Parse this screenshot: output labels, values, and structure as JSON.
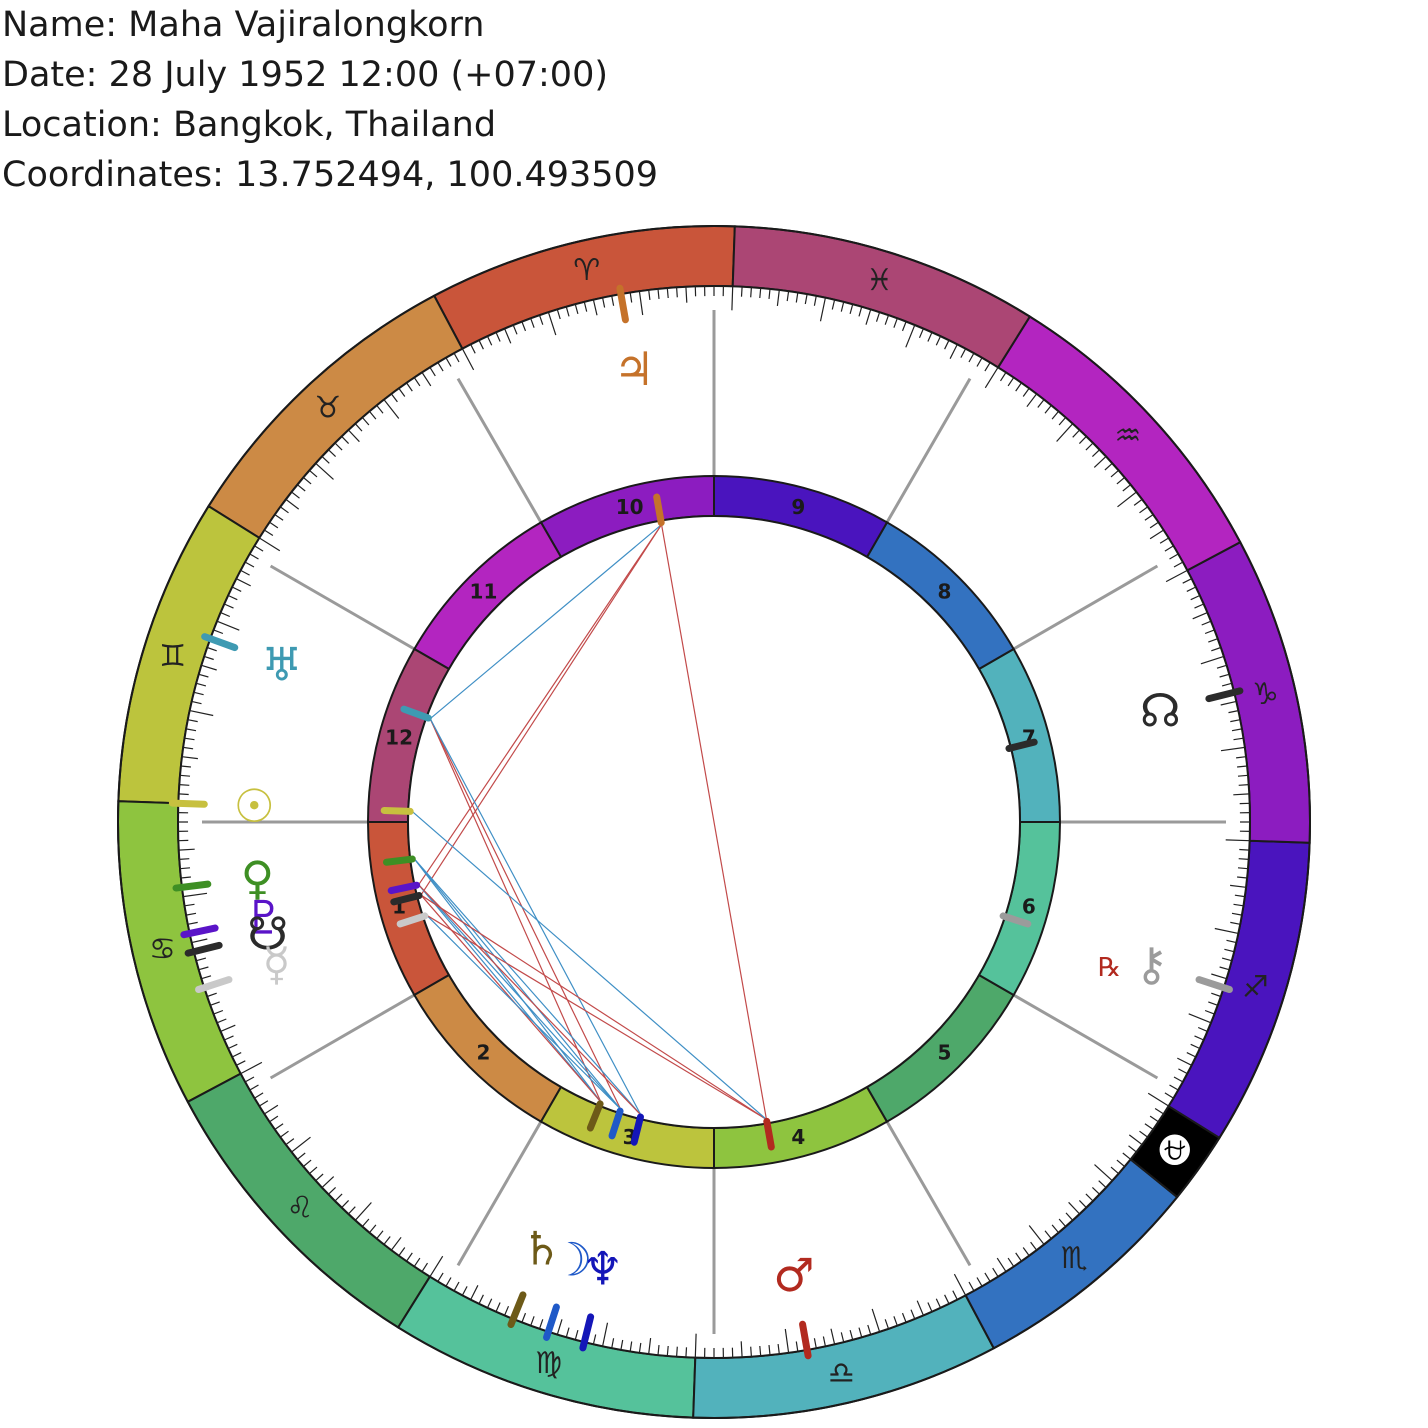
{
  "header": {
    "name_line": "Name: Maha Vajiralongkorn",
    "date_line": "Date: 28 July 1952 12:00 (+07:00)",
    "location_line": "Location: Bangkok, Thailand",
    "coords_line": "Coordinates: 13.752494, 100.493509"
  },
  "chart": {
    "ascendant_longitude": 92,
    "signs": [
      {
        "name": "aries",
        "glyph": "♈",
        "start": 0,
        "color": "#c9553a",
        "text_color": "#222222"
      },
      {
        "name": "taurus",
        "glyph": "♉",
        "start": 30,
        "color": "#cc8a45",
        "text_color": "#222222"
      },
      {
        "name": "gemini",
        "glyph": "♊",
        "start": 60,
        "color": "#bcc43d",
        "text_color": "#222222"
      },
      {
        "name": "cancer",
        "glyph": "♋",
        "start": 90,
        "color": "#8ec43f",
        "text_color": "#222222"
      },
      {
        "name": "leo",
        "glyph": "♌",
        "start": 120,
        "color": "#4ea86a",
        "text_color": "#222222"
      },
      {
        "name": "virgo",
        "glyph": "♍",
        "start": 150,
        "color": "#55c29b",
        "text_color": "#222222"
      },
      {
        "name": "libra",
        "glyph": "♎",
        "start": 180,
        "color": "#52b2bc",
        "text_color": "#222222"
      },
      {
        "name": "scorpio",
        "glyph": "♏",
        "start": 210,
        "color": "#3372c0",
        "text_color": "#222222"
      },
      {
        "name": "ophiuchus",
        "glyph": "⛎",
        "start": 233,
        "color": "#000000",
        "text_color": "#ffffff"
      },
      {
        "name": "sagittarius",
        "glyph": "♐",
        "start": 240,
        "color": "#4a14be",
        "text_color": "#222222"
      },
      {
        "name": "capricorn",
        "glyph": "♑",
        "start": 270,
        "color": "#8c1cc0",
        "text_color": "#222222"
      },
      {
        "name": "aquarius",
        "glyph": "♒",
        "start": 300,
        "color": "#b325c0",
        "text_color": "#222222"
      },
      {
        "name": "pisces",
        "glyph": "♓",
        "start": 330,
        "color": "#ab4674",
        "text_color": "#222222"
      }
    ],
    "houses": [
      {
        "number": "1",
        "start": 92,
        "color": "#c9553a"
      },
      {
        "number": "2",
        "start": 122,
        "color": "#cc8a45"
      },
      {
        "number": "3",
        "start": 152,
        "color": "#bcc43d"
      },
      {
        "number": "4",
        "start": 182,
        "color": "#8ec43f"
      },
      {
        "number": "5",
        "start": 212,
        "color": "#4ea86a"
      },
      {
        "number": "6",
        "start": 242,
        "color": "#55c29b"
      },
      {
        "number": "7",
        "start": 272,
        "color": "#52b2bc"
      },
      {
        "number": "8",
        "start": 302,
        "color": "#3372c0"
      },
      {
        "number": "9",
        "start": 332,
        "color": "#4a14be"
      },
      {
        "number": "10",
        "start": 2,
        "color": "#8c1cc0"
      },
      {
        "number": "11",
        "start": 32,
        "color": "#b325c0"
      },
      {
        "number": "12",
        "start": 62,
        "color": "#ab4674"
      }
    ],
    "planets": [
      {
        "name": "jupiter",
        "glyph": "♃",
        "longitude": 12,
        "color": "#c5722a"
      },
      {
        "name": "uranus",
        "glyph": "♅",
        "longitude": 72,
        "color": "#3e9ab2"
      },
      {
        "name": "sun",
        "glyph": "☉",
        "longitude": 90,
        "color": "#c7c03f"
      },
      {
        "name": "venus",
        "glyph": "♀",
        "longitude": 99,
        "color": "#3e8f24"
      },
      {
        "name": "pluto",
        "glyph": "♇",
        "longitude": 104,
        "color": "#5a14c8"
      },
      {
        "name": "south-node",
        "glyph": "☋",
        "longitude": 106,
        "color": "#2b2b2b"
      },
      {
        "name": "mercury",
        "glyph": "☿",
        "longitude": 110,
        "color": "#c9c9c9"
      },
      {
        "name": "saturn",
        "glyph": "♄",
        "longitude": 160,
        "color": "#6d5a18"
      },
      {
        "name": "moon",
        "glyph": "☽",
        "longitude": 164,
        "color": "#1f59c8"
      },
      {
        "name": "neptune",
        "glyph": "♆",
        "longitude": 168,
        "color": "#1416b8"
      },
      {
        "name": "mars",
        "glyph": "♂",
        "longitude": 192,
        "color": "#b22a1f"
      },
      {
        "name": "chiron",
        "glyph": "⚷",
        "longitude": 254,
        "color": "#9b9b9b"
      },
      {
        "name": "north-node",
        "glyph": "☊",
        "longitude": 286,
        "color": "#2b2b2b"
      }
    ],
    "retrograde_marker": {
      "glyph": "℞",
      "planet": "chiron",
      "color": "#b22a1f"
    },
    "aspects": [
      {
        "from": "jupiter",
        "to": "uranus",
        "kind": "trine"
      },
      {
        "from": "jupiter",
        "to": "pluto",
        "kind": "square"
      },
      {
        "from": "jupiter",
        "to": "south-node",
        "kind": "square"
      },
      {
        "from": "jupiter",
        "to": "mars",
        "kind": "square"
      },
      {
        "from": "uranus",
        "to": "saturn",
        "kind": "square"
      },
      {
        "from": "uranus",
        "to": "moon",
        "kind": "square"
      },
      {
        "from": "uranus",
        "to": "neptune",
        "kind": "trine"
      },
      {
        "from": "venus",
        "to": "saturn",
        "kind": "trine"
      },
      {
        "from": "venus",
        "to": "moon",
        "kind": "trine"
      },
      {
        "from": "venus",
        "to": "neptune",
        "kind": "trine"
      },
      {
        "from": "pluto",
        "to": "saturn",
        "kind": "trine"
      },
      {
        "from": "pluto",
        "to": "moon",
        "kind": "trine"
      },
      {
        "from": "pluto",
        "to": "neptune",
        "kind": "square"
      },
      {
        "from": "south-node",
        "to": "saturn",
        "kind": "square"
      },
      {
        "from": "south-node",
        "to": "mars",
        "kind": "square"
      },
      {
        "from": "mercury",
        "to": "moon",
        "kind": "trine"
      },
      {
        "from": "mercury",
        "to": "mars",
        "kind": "square"
      },
      {
        "from": "sun",
        "to": "mars",
        "kind": "trine"
      }
    ],
    "aspect_colors": {
      "trine": "#3f8fc5",
      "square": "#c24a4a"
    },
    "line_color": "#9a9a9a"
  }
}
